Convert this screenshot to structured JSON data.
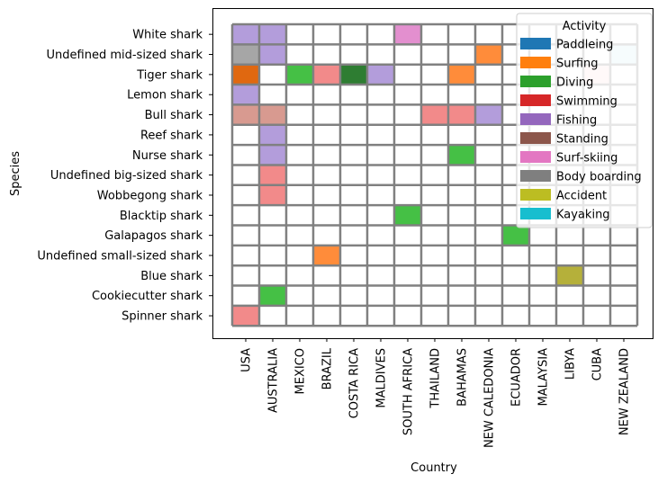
{
  "chart_data": {
    "type": "heatmap",
    "xlabel": "Country",
    "ylabel": "Species",
    "countries": [
      "USA",
      "AUSTRALIA",
      "MEXICO",
      "BRAZIL",
      "COSTA RICA",
      "MALDIVES",
      "SOUTH AFRICA",
      "THAILAND",
      "BAHAMAS",
      "NEW CALEDONIA",
      "ECUADOR",
      "MALAYSIA",
      "LIBYA",
      "CUBA",
      "NEW ZEALAND"
    ],
    "species": [
      "White shark",
      "Undefined mid-sized shark",
      "Tiger shark",
      "Lemon shark",
      "Bull shark",
      "Reef shark",
      "Nurse shark",
      "Undefined big-sized shark",
      "Wobbegong shark",
      "Blacktip shark",
      "Galapagos shark",
      "Undefined small-sized shark",
      "Blue shark",
      "Cookiecutter shark",
      "Spinner shark"
    ],
    "legend": {
      "title": "Activity",
      "placement": "top-right",
      "entries": [
        {
          "label": "Paddleing",
          "color": "#1f77b4"
        },
        {
          "label": "Surfing",
          "color": "#ff7f0e"
        },
        {
          "label": "Diving",
          "color": "#2ca02c"
        },
        {
          "label": "Swimming",
          "color": "#d62728"
        },
        {
          "label": "Fishing",
          "color": "#9467bd"
        },
        {
          "label": "Standing",
          "color": "#8c564b"
        },
        {
          "label": "Surf-skiing",
          "color": "#e377c2"
        },
        {
          "label": "Body boarding",
          "color": "#7f7f7f"
        },
        {
          "label": "Accident",
          "color": "#bcbd22"
        },
        {
          "label": "Kayaking",
          "color": "#17becf"
        }
      ]
    },
    "cells": [
      {
        "species": "White shark",
        "country": "USA",
        "color": "#b39ddb"
      },
      {
        "species": "White shark",
        "country": "AUSTRALIA",
        "color": "#b39ddb"
      },
      {
        "species": "White shark",
        "country": "SOUTH AFRICA",
        "color": "#e38fcf"
      },
      {
        "species": "Undefined mid-sized shark",
        "country": "USA",
        "color": "#a6a6a6"
      },
      {
        "species": "Undefined mid-sized shark",
        "country": "AUSTRALIA",
        "color": "#b39ddb"
      },
      {
        "species": "Undefined mid-sized shark",
        "country": "NEW CALEDONIA",
        "color": "#ff8c3a"
      },
      {
        "species": "Undefined mid-sized shark",
        "country": "NEW ZEALAND",
        "color": "#cfeef2"
      },
      {
        "species": "Tiger shark",
        "country": "USA",
        "color": "#e06810"
      },
      {
        "species": "Tiger shark",
        "country": "MEXICO",
        "color": "#45c045"
      },
      {
        "species": "Tiger shark",
        "country": "BRAZIL",
        "color": "#f28a8a"
      },
      {
        "species": "Tiger shark",
        "country": "COSTA RICA",
        "color": "#2e7d32"
      },
      {
        "species": "Tiger shark",
        "country": "MALDIVES",
        "color": "#b39ddb"
      },
      {
        "species": "Tiger shark",
        "country": "BAHAMAS",
        "color": "#ff8c3a"
      },
      {
        "species": "Tiger shark",
        "country": "CUBA",
        "color": "#fde0e0"
      },
      {
        "species": "Lemon shark",
        "country": "USA",
        "color": "#b39ddb"
      },
      {
        "species": "Bull shark",
        "country": "USA",
        "color": "#d89a90"
      },
      {
        "species": "Bull shark",
        "country": "AUSTRALIA",
        "color": "#d89a90"
      },
      {
        "species": "Bull shark",
        "country": "THAILAND",
        "color": "#f28a8a"
      },
      {
        "species": "Bull shark",
        "country": "BAHAMAS",
        "color": "#f28a8a"
      },
      {
        "species": "Bull shark",
        "country": "NEW CALEDONIA",
        "color": "#b39ddb"
      },
      {
        "species": "Reef shark",
        "country": "AUSTRALIA",
        "color": "#b39ddb"
      },
      {
        "species": "Nurse shark",
        "country": "AUSTRALIA",
        "color": "#b39ddb"
      },
      {
        "species": "Nurse shark",
        "country": "BAHAMAS",
        "color": "#45c045"
      },
      {
        "species": "Undefined big-sized shark",
        "country": "AUSTRALIA",
        "color": "#f28a8a"
      },
      {
        "species": "Wobbegong shark",
        "country": "AUSTRALIA",
        "color": "#f28a8a"
      },
      {
        "species": "Blacktip shark",
        "country": "SOUTH AFRICA",
        "color": "#45c045"
      },
      {
        "species": "Galapagos shark",
        "country": "ECUADOR",
        "color": "#45c045"
      },
      {
        "species": "Undefined small-sized shark",
        "country": "BRAZIL",
        "color": "#ff8c3a"
      },
      {
        "species": "Blue shark",
        "country": "LIBYA",
        "color": "#b5b03a"
      },
      {
        "species": "Cookiecutter shark",
        "country": "AUSTRALIA",
        "color": "#45c045"
      },
      {
        "species": "Spinner shark",
        "country": "USA",
        "color": "#f28a8a"
      }
    ]
  }
}
